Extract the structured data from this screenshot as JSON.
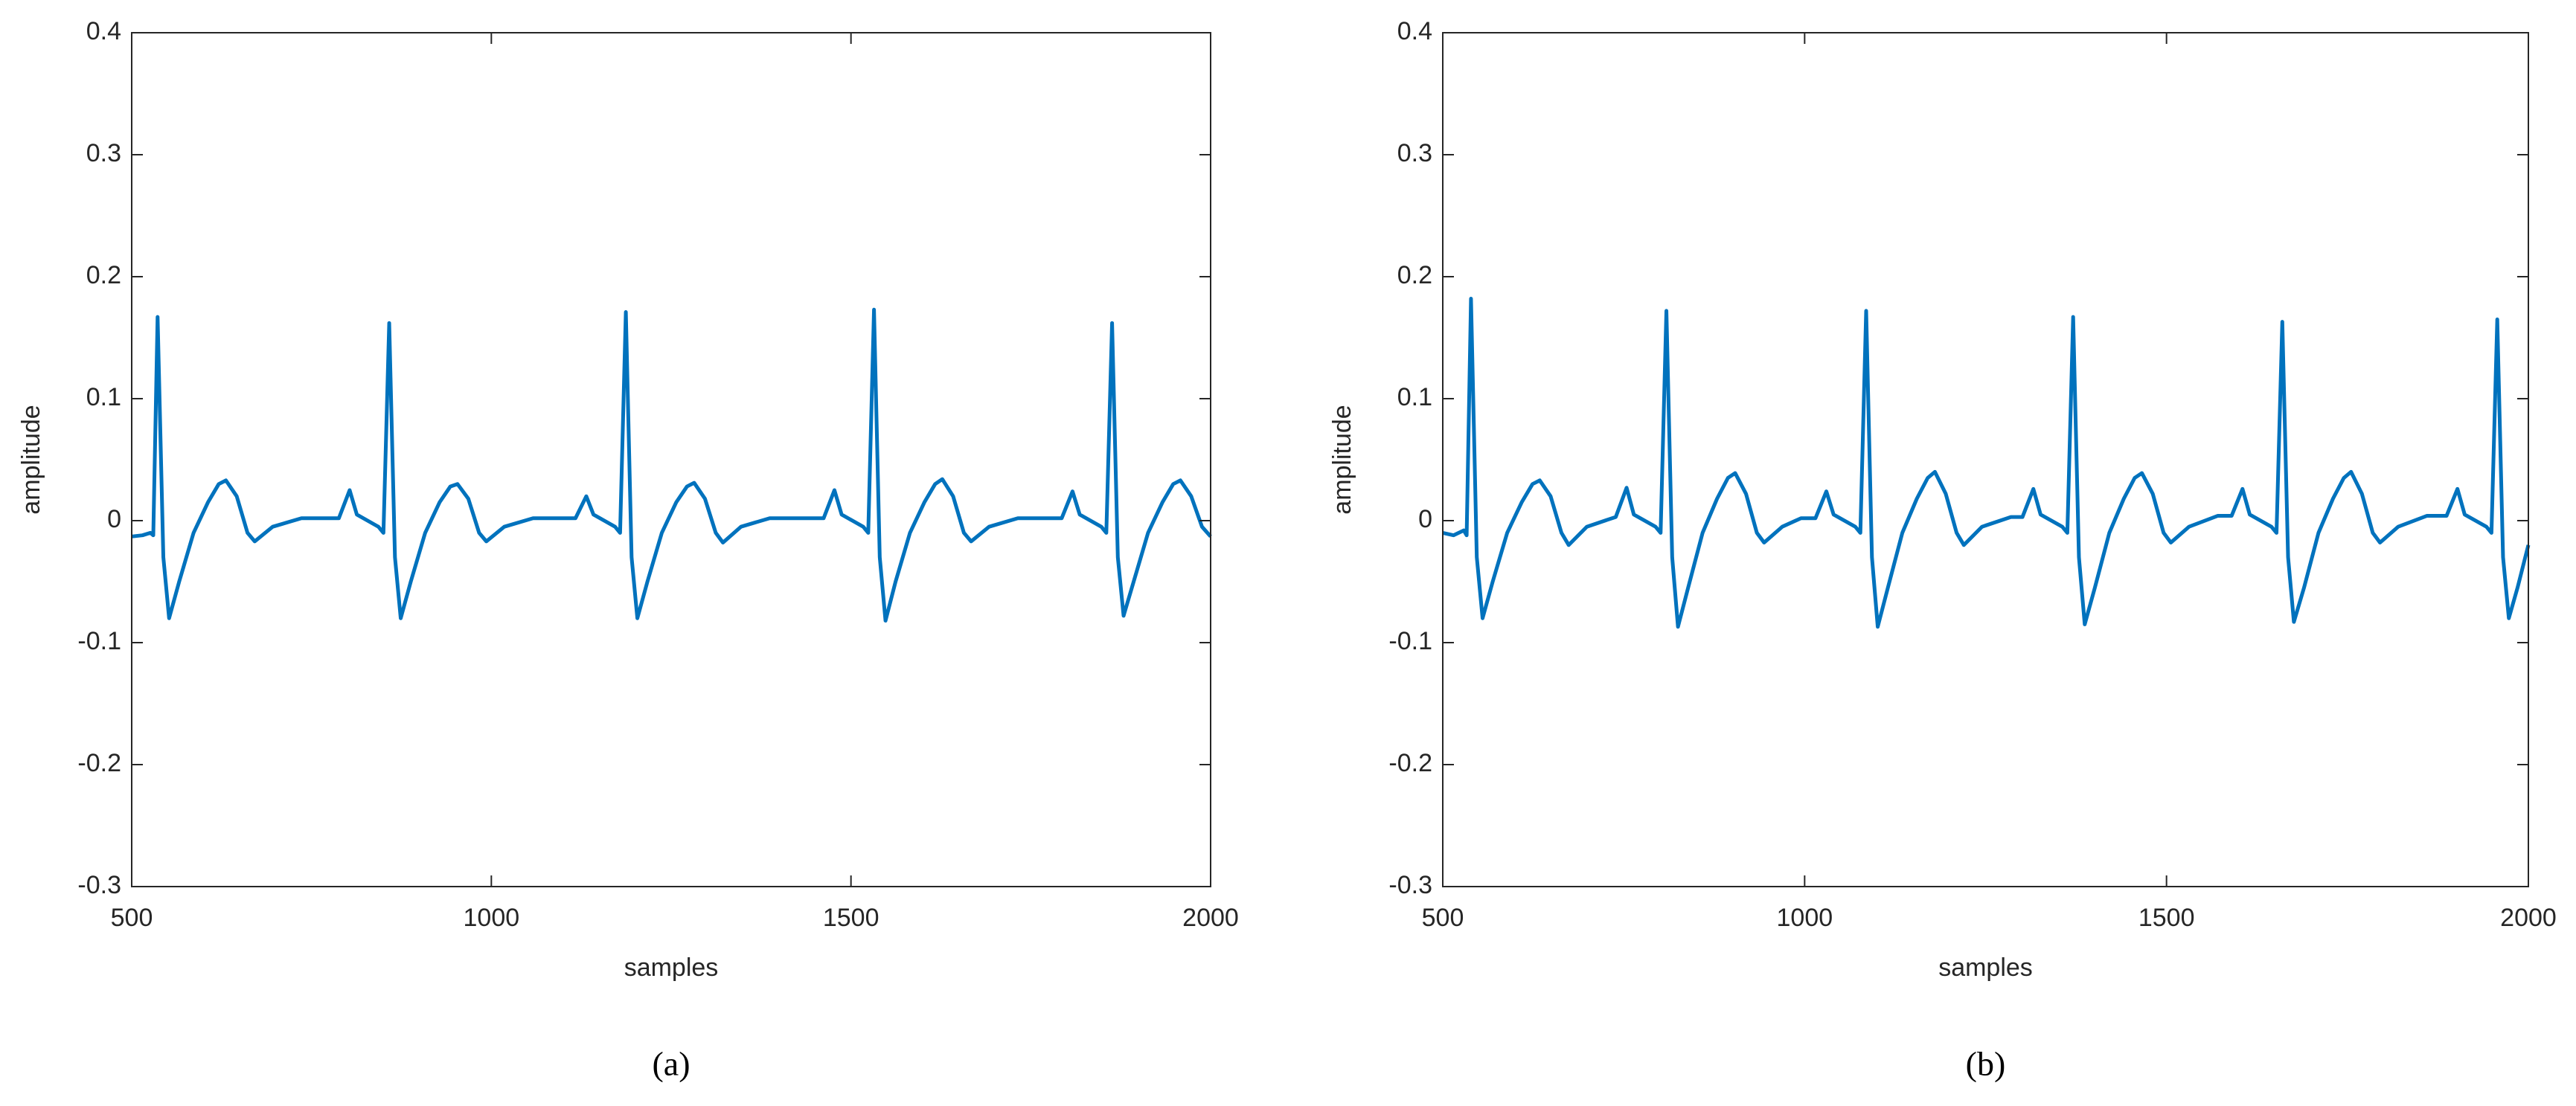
{
  "chart_data": [
    {
      "type": "line",
      "caption": "(a)",
      "xlabel": "samples",
      "ylabel": "amplitude",
      "color": "#0072bd",
      "xlim": [
        500,
        2000
      ],
      "ylim": [
        -0.3,
        0.4
      ],
      "xticks": [
        500,
        1000,
        1500,
        2000
      ],
      "yticks": [
        -0.3,
        -0.2,
        -0.1,
        0,
        0.1,
        0.2,
        0.3,
        0.4
      ],
      "x": [
        500,
        515,
        526,
        530,
        536,
        544,
        552,
        566,
        586,
        606,
        621,
        631,
        646,
        661,
        671,
        696,
        736,
        788,
        803,
        813,
        843,
        850,
        858,
        866,
        874,
        888,
        908,
        928,
        943,
        953,
        968,
        983,
        993,
        1018,
        1058,
        1117,
        1132,
        1142,
        1172,
        1179,
        1187,
        1195,
        1203,
        1217,
        1237,
        1257,
        1272,
        1282,
        1297,
        1312,
        1322,
        1347,
        1387,
        1462,
        1477,
        1487,
        1517,
        1524,
        1532,
        1540,
        1548,
        1562,
        1582,
        1602,
        1617,
        1627,
        1642,
        1657,
        1667,
        1692,
        1732,
        1793,
        1808,
        1818,
        1848,
        1855,
        1863,
        1871,
        1879,
        1893,
        1913,
        1933,
        1948,
        1958,
        1973,
        1988,
        2000
      ],
      "values": [
        -0.013,
        -0.012,
        -0.01,
        -0.012,
        0.167,
        -0.03,
        -0.08,
        -0.05,
        -0.01,
        0.015,
        0.03,
        0.033,
        0.02,
        -0.01,
        -0.017,
        -0.005,
        0.002,
        0.002,
        0.025,
        0.005,
        -0.005,
        -0.01,
        0.162,
        -0.03,
        -0.08,
        -0.05,
        -0.01,
        0.015,
        0.028,
        0.03,
        0.018,
        -0.01,
        -0.017,
        -0.005,
        0.002,
        0.002,
        0.02,
        0.005,
        -0.005,
        -0.01,
        0.171,
        -0.03,
        -0.08,
        -0.05,
        -0.01,
        0.015,
        0.028,
        0.031,
        0.018,
        -0.01,
        -0.018,
        -0.005,
        0.002,
        0.002,
        0.025,
        0.005,
        -0.005,
        -0.01,
        0.173,
        -0.03,
        -0.082,
        -0.05,
        -0.01,
        0.015,
        0.03,
        0.034,
        0.02,
        -0.01,
        -0.017,
        -0.005,
        0.002,
        0.002,
        0.024,
        0.005,
        -0.005,
        -0.01,
        0.162,
        -0.03,
        -0.078,
        -0.05,
        -0.01,
        0.015,
        0.03,
        0.033,
        0.02,
        -0.005,
        -0.013
      ]
    },
    {
      "type": "line",
      "caption": "(b)",
      "xlabel": "samples",
      "ylabel": "amplitude",
      "color": "#0072bd",
      "xlim": [
        500,
        2000
      ],
      "ylim": [
        -0.3,
        0.4
      ],
      "xticks": [
        500,
        1000,
        1500,
        2000
      ],
      "yticks": [
        -0.3,
        -0.2,
        -0.1,
        0,
        0.1,
        0.2,
        0.3,
        0.4
      ],
      "x": [
        500,
        515,
        529,
        533,
        539,
        547,
        555,
        569,
        589,
        609,
        624,
        634,
        649,
        664,
        674,
        699,
        739,
        754,
        764,
        794,
        801,
        809,
        817,
        825,
        839,
        859,
        879,
        894,
        904,
        919,
        934,
        944,
        969,
        995,
        1015,
        1030,
        1040,
        1070,
        1077,
        1085,
        1093,
        1101,
        1115,
        1135,
        1155,
        1170,
        1180,
        1195,
        1210,
        1220,
        1245,
        1285,
        1301,
        1316,
        1326,
        1356,
        1363,
        1371,
        1379,
        1387,
        1401,
        1421,
        1441,
        1456,
        1466,
        1481,
        1496,
        1506,
        1531,
        1571,
        1590,
        1605,
        1615,
        1645,
        1652,
        1660,
        1668,
        1676,
        1690,
        1710,
        1730,
        1745,
        1755,
        1770,
        1785,
        1795,
        1820,
        1860,
        1887,
        1902,
        1912,
        1942,
        1949,
        1957,
        1965,
        1973,
        1985,
        2000
      ],
      "values": [
        -0.01,
        -0.012,
        -0.008,
        -0.012,
        0.182,
        -0.03,
        -0.08,
        -0.05,
        -0.01,
        0.015,
        0.03,
        0.033,
        0.02,
        -0.01,
        -0.02,
        -0.005,
        0.003,
        0.027,
        0.005,
        -0.005,
        -0.01,
        0.172,
        -0.03,
        -0.087,
        -0.055,
        -0.01,
        0.018,
        0.035,
        0.039,
        0.022,
        -0.01,
        -0.018,
        -0.005,
        0.002,
        0.002,
        0.024,
        0.005,
        -0.005,
        -0.01,
        0.172,
        -0.03,
        -0.087,
        -0.055,
        -0.01,
        0.018,
        0.035,
        0.04,
        0.022,
        -0.01,
        -0.02,
        -0.005,
        0.003,
        0.003,
        0.026,
        0.005,
        -0.005,
        -0.01,
        0.167,
        -0.03,
        -0.085,
        -0.055,
        -0.01,
        0.018,
        0.035,
        0.039,
        0.022,
        -0.01,
        -0.018,
        -0.005,
        0.004,
        0.004,
        0.026,
        0.005,
        -0.005,
        -0.01,
        0.163,
        -0.03,
        -0.083,
        -0.055,
        -0.01,
        0.018,
        0.035,
        0.04,
        0.022,
        -0.01,
        -0.018,
        -0.005,
        0.004,
        0.004,
        0.026,
        0.005,
        -0.005,
        -0.01,
        0.165,
        -0.03,
        -0.08,
        -0.055,
        -0.02
      ]
    }
  ]
}
